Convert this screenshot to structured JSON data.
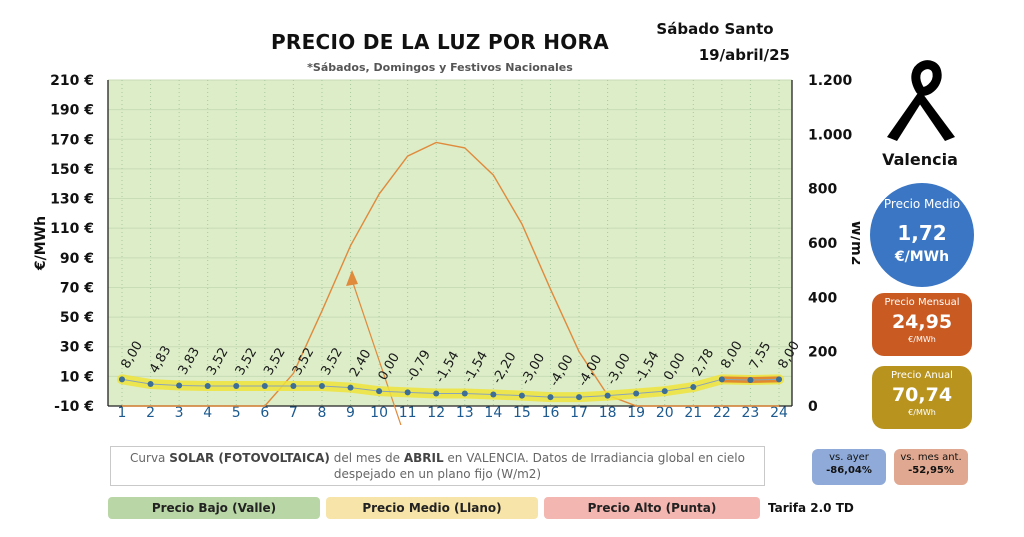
{
  "header": {
    "title": "PRECIO DE LA LUZ POR HORA",
    "subtitle": "*Sábados, Domingos y Festivos Nacionales",
    "day_name": "Sábado Santo",
    "date": "19/abril/25"
  },
  "city": "Valencia",
  "mourning_icon": "black-ribbon-icon",
  "stats": {
    "avg_label": "Precio Medio",
    "avg_value": "1,72",
    "avg_unit": "€/MWh",
    "monthly_label": "Precio Mensual",
    "monthly_value": "24,95",
    "monthly_unit": "€/MWh",
    "annual_label": "Precio Anual",
    "annual_value": "70,74",
    "annual_unit": "€/MWh",
    "vs_day_label": "vs. ayer",
    "vs_day_value": "-86,04%",
    "vs_month_label": "vs. mes ant.",
    "vs_month_value": "-52,95%"
  },
  "solar_note": {
    "p1": "Curva ",
    "b1": "SOLAR (FOTOVOLTAICA)",
    "p2": " del mes de ",
    "b2": "ABRIL",
    "p3": " en VALENCIA. Datos de Irradiancia global en cielo despejado en un plano fijo (W/m2)"
  },
  "legend": {
    "low": "Precio Bajo (Valle)",
    "mid": "Precio Medio (Llano)",
    "high": "Precio Alto (Punta)",
    "tariff": "Tarifa 2.0 TD"
  },
  "colors": {
    "plot_bg": "#dcedc8",
    "price_low": "#c5e03a",
    "price_mid": "#f0e33a",
    "price_high": "#e07a2a",
    "solar_line": "#e08a3c",
    "avg_bubble": "#3a76c4",
    "monthly_box": "#c95a22",
    "annual_box": "#b8941f"
  },
  "chart_data": {
    "type": "line",
    "x": [
      1,
      2,
      3,
      4,
      5,
      6,
      7,
      8,
      9,
      10,
      11,
      12,
      13,
      14,
      15,
      16,
      17,
      18,
      19,
      20,
      21,
      22,
      23,
      24
    ],
    "series": [
      {
        "axis": "left",
        "values": [
          8.0,
          4.83,
          3.83,
          3.52,
          3.52,
          3.52,
          3.52,
          3.52,
          2.4,
          0.0,
          -0.79,
          -1.54,
          -1.54,
          -2.2,
          -3.0,
          -4.0,
          -4.0,
          -3.0,
          -1.54,
          0.0,
          2.78,
          8.0,
          7.55,
          8.0
        ],
        "labels": [
          "8,00",
          "4,83",
          "3,83",
          "3,52",
          "3,52",
          "3,52",
          "3,52",
          "3,52",
          "2,40",
          "0,00",
          "-0,79",
          "-1,54",
          "-1,54",
          "-2,20",
          "-3,00",
          "-4,00",
          "-4,00",
          "-3,00",
          "-1,54",
          "0,00",
          "2,78",
          "8,00",
          "7,55",
          "8,00"
        ]
      },
      {
        "axis": "right",
        "values": [
          0,
          0,
          0,
          0,
          0,
          0,
          120,
          350,
          590,
          780,
          920,
          970,
          950,
          850,
          670,
          430,
          200,
          40,
          0,
          0,
          0,
          0,
          0,
          0
        ]
      }
    ],
    "ylabel": "€/MWh",
    "y2label": "W/m2",
    "ylim": [
      -10,
      210
    ],
    "y2lim": [
      0,
      1200
    ],
    "yticks": [
      -10,
      10,
      30,
      50,
      70,
      90,
      110,
      130,
      150,
      170,
      190,
      210
    ],
    "ytick_labels": [
      "-10 €",
      "10 €",
      "30 €",
      "50 €",
      "70 €",
      "90 €",
      "110 €",
      "130 €",
      "150 €",
      "170 €",
      "190 €",
      "210 €"
    ],
    "y2ticks": [
      0,
      200,
      400,
      600,
      800,
      1000,
      1200
    ],
    "y2tick_labels": [
      "0",
      "200",
      "400",
      "600",
      "800",
      "1.000",
      "1.200"
    ],
    "grid": true
  }
}
